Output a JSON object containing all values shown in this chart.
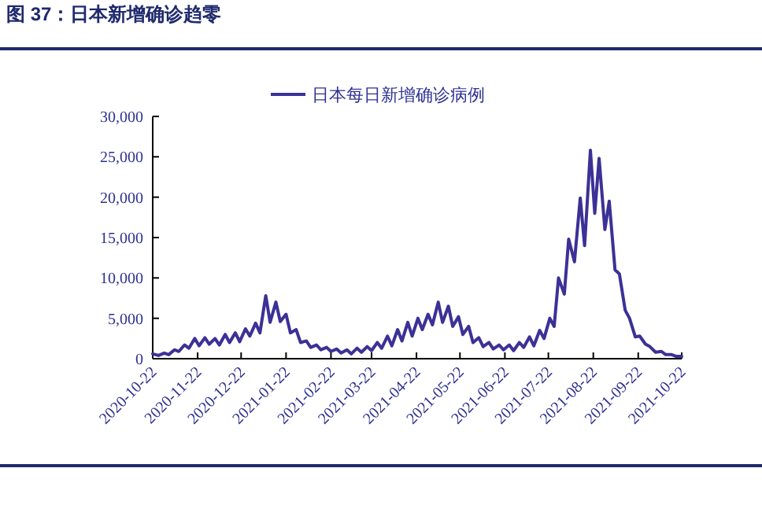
{
  "chart_data": {
    "type": "line",
    "title": "图 37：日本新增确诊趋零",
    "legend": "top",
    "grid": false,
    "xlim": [
      "2020-10-22",
      "2021-10-22"
    ],
    "xticks": [
      "2020-10-22",
      "2020-11-22",
      "2020-12-22",
      "2021-01-22",
      "2021-02-22",
      "2021-03-22",
      "2021-04-22",
      "2021-05-22",
      "2021-06-22",
      "2021-07-22",
      "2021-08-22",
      "2021-09-22",
      "2021-10-22"
    ],
    "ylim": [
      0,
      30000
    ],
    "yticks": [
      {
        "value": 0,
        "label": "0"
      },
      {
        "value": 5000,
        "label": "5,000"
      },
      {
        "value": 10000,
        "label": "10,000"
      },
      {
        "value": 15000,
        "label": "15,000"
      },
      {
        "value": 20000,
        "label": "20,000"
      },
      {
        "value": 25000,
        "label": "25,000"
      },
      {
        "value": 30000,
        "label": "30,000"
      }
    ],
    "series": [
      {
        "name": "日本每日新增确诊病例",
        "color": "#3b3196",
        "x": [
          "2020-10-22",
          "2020-10-26",
          "2020-10-30",
          "2020-11-02",
          "2020-11-06",
          "2020-11-09",
          "2020-11-13",
          "2020-11-16",
          "2020-11-20",
          "2020-11-23",
          "2020-11-27",
          "2020-11-30",
          "2020-12-04",
          "2020-12-07",
          "2020-12-11",
          "2020-12-14",
          "2020-12-18",
          "2020-12-21",
          "2020-12-25",
          "2020-12-28",
          "2021-01-01",
          "2021-01-04",
          "2021-01-08",
          "2021-01-11",
          "2021-01-15",
          "2021-01-18",
          "2021-01-22",
          "2021-01-25",
          "2021-01-29",
          "2021-02-01",
          "2021-02-05",
          "2021-02-08",
          "2021-02-12",
          "2021-02-15",
          "2021-02-19",
          "2021-02-22",
          "2021-02-26",
          "2021-03-01",
          "2021-03-05",
          "2021-03-08",
          "2021-03-12",
          "2021-03-15",
          "2021-03-19",
          "2021-03-22",
          "2021-03-26",
          "2021-03-29",
          "2021-04-02",
          "2021-04-05",
          "2021-04-09",
          "2021-04-12",
          "2021-04-16",
          "2021-04-19",
          "2021-04-23",
          "2021-04-26",
          "2021-04-30",
          "2021-05-03",
          "2021-05-07",
          "2021-05-10",
          "2021-05-14",
          "2021-05-17",
          "2021-05-21",
          "2021-05-24",
          "2021-05-28",
          "2021-05-31",
          "2021-06-04",
          "2021-06-07",
          "2021-06-11",
          "2021-06-14",
          "2021-06-18",
          "2021-06-21",
          "2021-06-25",
          "2021-06-28",
          "2021-07-02",
          "2021-07-05",
          "2021-07-09",
          "2021-07-12",
          "2021-07-16",
          "2021-07-19",
          "2021-07-23",
          "2021-07-26",
          "2021-07-29",
          "2021-08-02",
          "2021-08-05",
          "2021-08-09",
          "2021-08-13",
          "2021-08-16",
          "2021-08-20",
          "2021-08-23",
          "2021-08-26",
          "2021-08-30",
          "2021-09-02",
          "2021-09-06",
          "2021-09-09",
          "2021-09-13",
          "2021-09-16",
          "2021-09-20",
          "2021-09-23",
          "2021-09-27",
          "2021-09-30",
          "2021-10-04",
          "2021-10-08",
          "2021-10-11",
          "2021-10-15",
          "2021-10-18",
          "2021-10-22"
        ],
        "values": [
          600,
          400,
          700,
          500,
          1100,
          900,
          1700,
          1300,
          2500,
          1600,
          2600,
          1800,
          2500,
          1700,
          3000,
          2000,
          3200,
          2100,
          3700,
          2800,
          4400,
          3200,
          7800,
          4500,
          7000,
          4600,
          5500,
          3200,
          3600,
          2000,
          2200,
          1400,
          1700,
          1100,
          1400,
          900,
          1200,
          700,
          1100,
          600,
          1300,
          800,
          1500,
          1000,
          2000,
          1300,
          2800,
          1600,
          3600,
          2200,
          4500,
          2800,
          5000,
          3600,
          5500,
          4200,
          7000,
          4500,
          6500,
          4000,
          5200,
          3000,
          4000,
          2000,
          2600,
          1500,
          2000,
          1200,
          1700,
          1100,
          1700,
          1000,
          2000,
          1400,
          2700,
          1600,
          3500,
          2500,
          5000,
          4000,
          10000,
          8000,
          14800,
          12000,
          19900,
          14000,
          25800,
          18000,
          24800,
          16000,
          19500,
          11000,
          10500,
          6000,
          5000,
          2700,
          2800,
          1800,
          1500,
          800,
          900,
          500,
          500,
          300,
          300
        ]
      }
    ]
  }
}
